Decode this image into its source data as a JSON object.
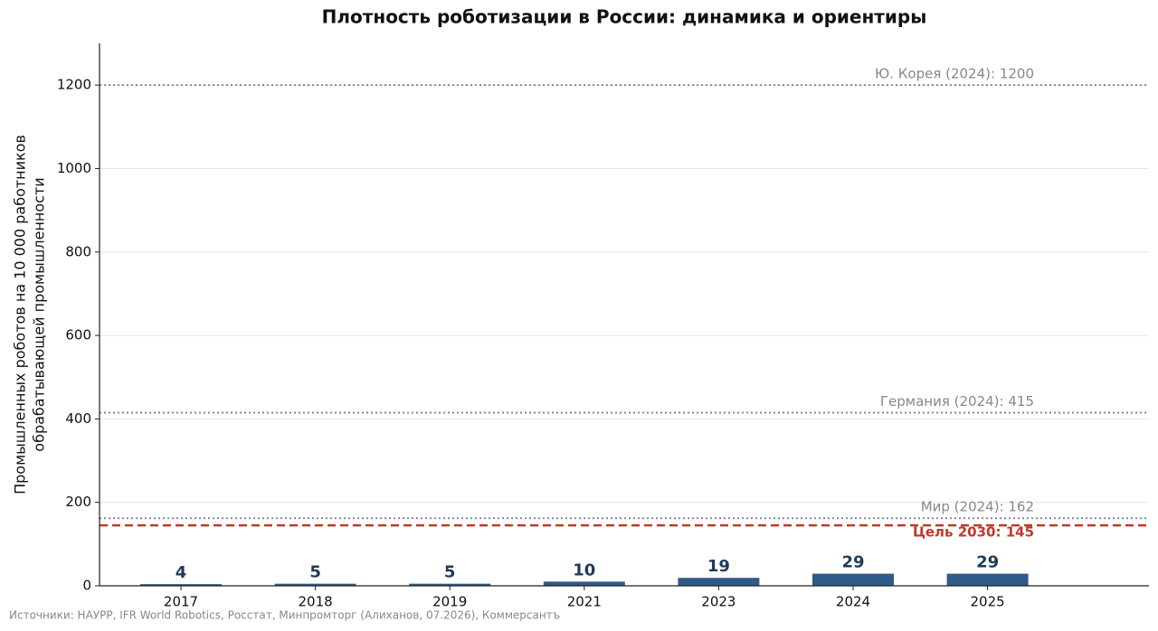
{
  "chart_data": {
    "type": "bar",
    "title": "Плотность роботизации в России: динамика и ориентиры",
    "ylabel": [
      "Промышленных роботов на 10 000 работников",
      "обрабатывающей промышленности"
    ],
    "categories": [
      "2017",
      "2018",
      "2019",
      "2021",
      "2023",
      "2024",
      "2025"
    ],
    "values": [
      4,
      5,
      5,
      10,
      19,
      29,
      29
    ],
    "color": "#2e5b87",
    "label_color": "#1f3b5c",
    "ylim": [
      0,
      1300
    ],
    "yticks": [
      0,
      200,
      400,
      600,
      800,
      1000,
      1200
    ],
    "grid": true,
    "reference_lines": [
      {
        "label": "Ю. Корея (2024): 1200",
        "value": 1200,
        "color": "#888888",
        "style": "dotted"
      },
      {
        "label": "Германия (2024): 415",
        "value": 415,
        "color": "#888888",
        "style": "dotted"
      },
      {
        "label": "Мир (2024): 162",
        "value": 162,
        "color": "#888888",
        "style": "dotted"
      },
      {
        "label": "Цель 2030: 145",
        "value": 145,
        "color": "#c0392b",
        "style": "dashed"
      }
    ],
    "source": "Источники: НАУРР, IFR World Robotics, Росстат, Минпромторг (Алиханов, 07.2026), Коммерсантъ"
  }
}
